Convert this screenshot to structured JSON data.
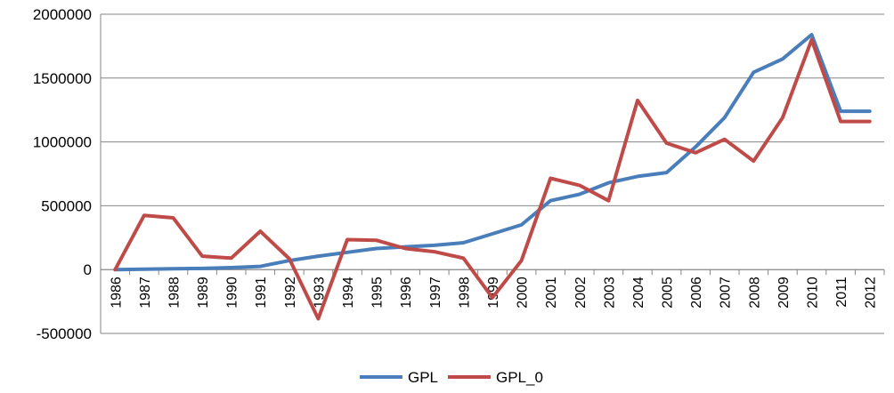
{
  "chart_data": {
    "type": "line",
    "categories": [
      "1986",
      "1987",
      "1988",
      "1989",
      "1990",
      "1991",
      "1992",
      "1993",
      "1994",
      "1995",
      "1996",
      "1997",
      "1998",
      "1999",
      "2000",
      "2001",
      "2002",
      "2003",
      "2004",
      "2005",
      "2006",
      "2007",
      "2008",
      "2009",
      "2010",
      "2011",
      "2012"
    ],
    "series": [
      {
        "name": "GPL",
        "color": "#4a7ebb",
        "values": [
          0,
          3000,
          7000,
          9000,
          15000,
          25000,
          70000,
          105000,
          135000,
          165000,
          178000,
          190000,
          210000,
          280000,
          350000,
          540000,
          590000,
          680000,
          730000,
          760000,
          960000,
          1190000,
          1545000,
          1650000,
          1840000,
          1240000,
          1240000
        ]
      },
      {
        "name": "GPL_0",
        "color": "#be4b48",
        "values": [
          0,
          425000,
          405000,
          105000,
          90000,
          300000,
          85000,
          -385000,
          235000,
          230000,
          165000,
          140000,
          90000,
          -220000,
          70000,
          715000,
          660000,
          540000,
          1325000,
          990000,
          915000,
          1020000,
          850000,
          1190000,
          1800000,
          1160000,
          1160000
        ]
      }
    ],
    "yticks": [
      "2000000",
      "1500000",
      "1000000",
      "500000",
      "0",
      "-500000"
    ],
    "ylim": [
      -500000,
      2000000
    ],
    "grid": true,
    "legend_position": "bottom"
  }
}
